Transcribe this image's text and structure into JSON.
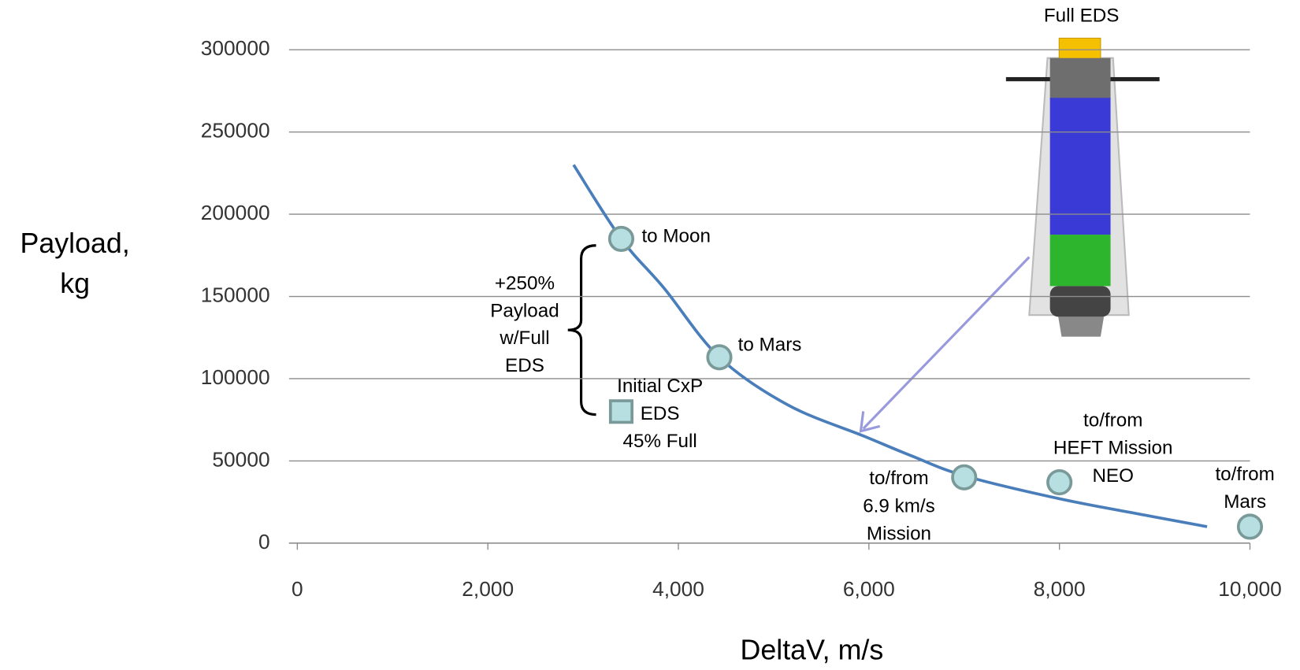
{
  "chart_data": {
    "type": "line",
    "x_label": "DeltaV, m/s",
    "y_label": [
      "Payload,",
      "kg"
    ],
    "xlim": [
      0,
      10000
    ],
    "ylim": [
      0,
      300000
    ],
    "xticks": [
      0,
      {
        "value": 2000,
        "label": "2,000"
      },
      {
        "value": 4000,
        "label": "4,000"
      },
      {
        "value": 6000,
        "label": "6,000"
      },
      {
        "value": 8000,
        "label": "8,000"
      },
      {
        "value": 10000,
        "label": "10,000"
      }
    ],
    "yticks": [
      0,
      50000,
      100000,
      150000,
      200000,
      250000,
      300000
    ],
    "grid": true,
    "series": [
      {
        "color": "#4a7ebb",
        "x": [
          2900,
          3400,
          3850,
          4430,
          5150,
          5950,
          6450,
          7000,
          8000,
          8900,
          9550
        ],
        "values": [
          230000,
          185000,
          155000,
          113000,
          84000,
          65000,
          53000,
          41000,
          27000,
          17000,
          10000
        ]
      }
    ],
    "points": [
      {
        "x": 3400,
        "y": 185000,
        "label": [
          "to Moon"
        ]
      },
      {
        "x": 4430,
        "y": 113000,
        "label": [
          "to Mars"
        ]
      },
      {
        "x": 7000,
        "y": 40000,
        "label": [
          "to/from",
          "6.9 km/s",
          "Mission"
        ]
      },
      {
        "x": 8000,
        "y": 37000,
        "label": [
          "to/from",
          "HEFT Mission",
          "NEO"
        ]
      },
      {
        "x": 10000,
        "y": 10000,
        "label": [
          "to/from",
          "Mars"
        ]
      }
    ],
    "point_color": "#b7dee0",
    "square_point": {
      "x": 3400,
      "y": 80000,
      "label": [
        "Initial CxP",
        "EDS",
        "45% Full"
      ]
    },
    "brace_label": [
      "+250%",
      "Payload",
      "w/Full",
      "EDS"
    ],
    "rocket_label": "Full EDS"
  }
}
